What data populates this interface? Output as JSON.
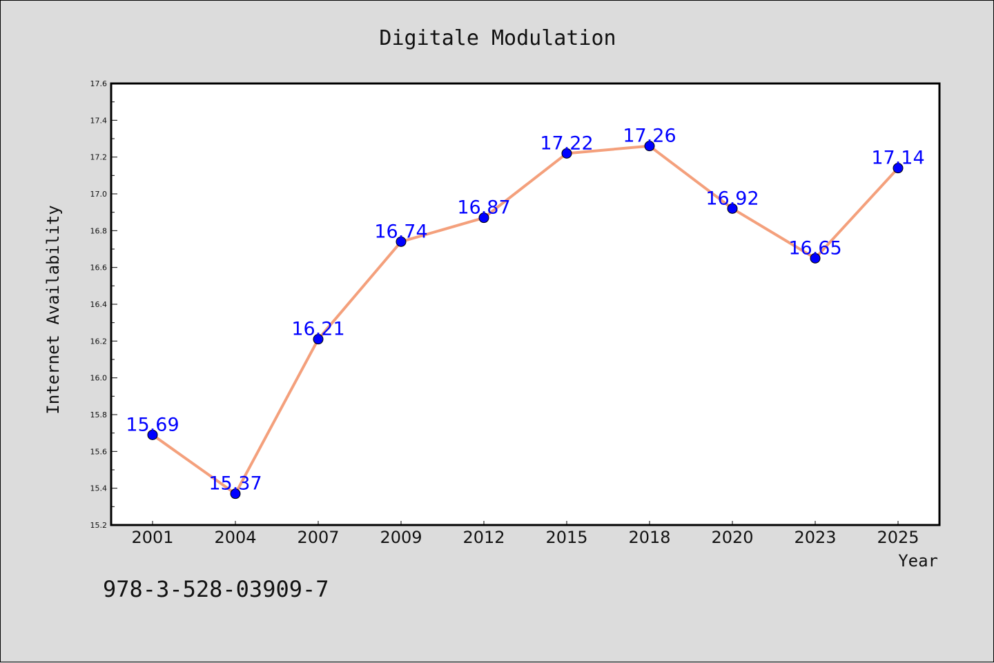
{
  "colors": {
    "background": "#dcdcdc",
    "plot_background": "#ffffff",
    "line": "#f4a07c",
    "marker": "#0000ff",
    "data_label": "#0000ff"
  },
  "isbn": "978-3-528-03909-7",
  "chart_data": {
    "type": "line",
    "title": "Digitale Modulation",
    "xlabel": "Year",
    "ylabel": "Internet Availability",
    "categories": [
      "2001",
      "2004",
      "2007",
      "2009",
      "2012",
      "2015",
      "2018",
      "2020",
      "2023",
      "2025"
    ],
    "series": [
      {
        "values": [
          15.69,
          15.37,
          16.21,
          16.74,
          16.87,
          17.22,
          17.26,
          16.92,
          16.65,
          17.14
        ],
        "labels": [
          "15.69",
          "15.37",
          "16.21",
          "16.74",
          "16.87",
          "17.22",
          "17.26",
          "16.92",
          "16.65",
          "17.14"
        ]
      }
    ],
    "ylim": [
      15.2,
      17.6
    ],
    "yticks": [
      "15.2",
      "15.4",
      "15.6",
      "15.8",
      "16.0",
      "16.2",
      "16.4",
      "16.6",
      "16.8",
      "17.0",
      "17.2",
      "17.4",
      "17.6"
    ],
    "grid": false,
    "legend": "none"
  }
}
